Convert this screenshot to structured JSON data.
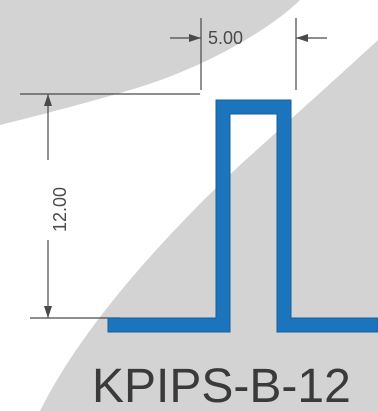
{
  "dimensions": {
    "width_label": "5.00",
    "height_label": "12.00"
  },
  "part_label": "KPIPS-B-12",
  "colors": {
    "background": "#ffffff",
    "shaded_region": "#d3d3d3",
    "profile": "#1c75bc",
    "dimension_line": "#4a4a4a"
  }
}
